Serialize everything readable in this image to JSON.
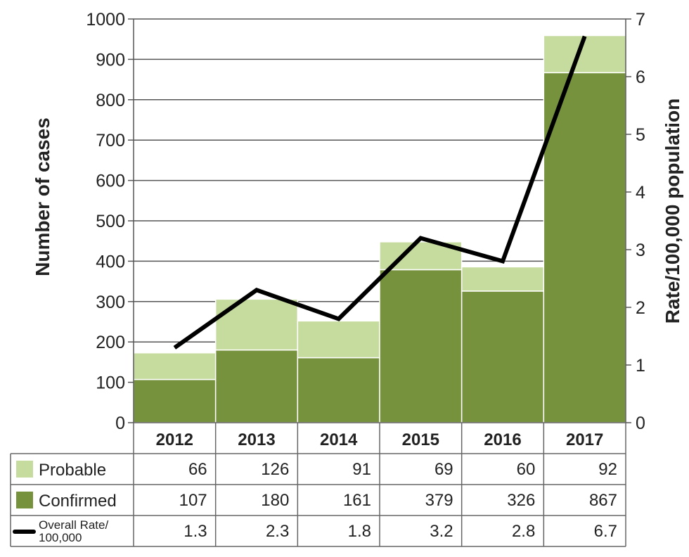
{
  "chart_data": {
    "type": "bar",
    "stacked": true,
    "categories": [
      "2012",
      "2013",
      "2014",
      "2015",
      "2016",
      "2017"
    ],
    "series": [
      {
        "name": "Probable",
        "values": [
          66,
          126,
          91,
          69,
          60,
          92
        ],
        "color": "#c6dc9f"
      },
      {
        "name": "Confirmed",
        "values": [
          107,
          180,
          161,
          379,
          326,
          867
        ],
        "color": "#76923c"
      }
    ],
    "line_series": {
      "name": "Overall Rate/ 100,000",
      "name_lines": [
        "Overall Rate/",
        "100,000"
      ],
      "values": [
        1.3,
        2.3,
        1.8,
        3.2,
        2.8,
        6.7
      ],
      "color": "#000000",
      "axis": "right"
    },
    "ylabel": "Number of cases",
    "y2label": "Rate/100,000 population",
    "ylim": [
      0,
      1000
    ],
    "y2lim": [
      0,
      7
    ],
    "yticks": [
      "0",
      "100",
      "200",
      "300",
      "400",
      "500",
      "600",
      "700",
      "800",
      "900",
      "1000"
    ],
    "y2ticks": [
      "0",
      "1",
      "2",
      "3",
      "4",
      "5",
      "6",
      "7"
    ],
    "data_table": true,
    "grid": true
  }
}
